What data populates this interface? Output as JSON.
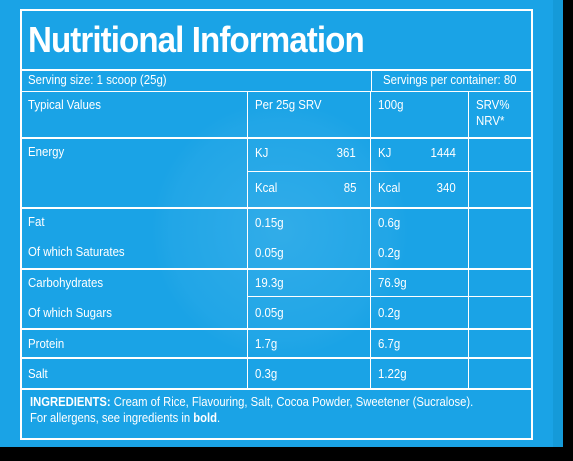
{
  "title": "Nutritional Information",
  "serving": {
    "size": "Serving size: 1 scoop (25g)",
    "per_container": "Servings per container: 80"
  },
  "headers": {
    "typical": "Typical Values",
    "per_serving": "Per 25g SRV",
    "per_100g": "100g",
    "srv_nrv_line1": "SRV%",
    "srv_nrv_line2": "NRV*"
  },
  "energy": {
    "label": "Energy",
    "kj_unit": "KJ",
    "kj_serving": "361",
    "kj_100g": "1444",
    "kcal_unit": "Kcal",
    "kcal_serving": "85",
    "kcal_100g": "340"
  },
  "rows": [
    {
      "label": "Fat",
      "serving": "0.15g",
      "per100": "0.6g"
    },
    {
      "label": "Of which Saturates",
      "serving": "0.05g",
      "per100": "0.2g"
    },
    {
      "label": "Carbohydrates",
      "serving": "19.3g",
      "per100": "76.9g"
    },
    {
      "label": "Of which Sugars",
      "serving": "0.05g",
      "per100": "0.2g"
    },
    {
      "label": "Protein",
      "serving": "1.7g",
      "per100": "6.7g"
    },
    {
      "label": "Salt",
      "serving": "0.3g",
      "per100": "1.22g"
    }
  ],
  "ingredients": {
    "heading": "INGREDIENTS:",
    "text": " Cream of Rice, Flavouring, Salt, Cocoa Powder, Sweetener (Sucralose).",
    "allergen_prefix": "For allergens, see ingredients in ",
    "allergen_bold": "bold",
    "allergen_suffix": "."
  }
}
